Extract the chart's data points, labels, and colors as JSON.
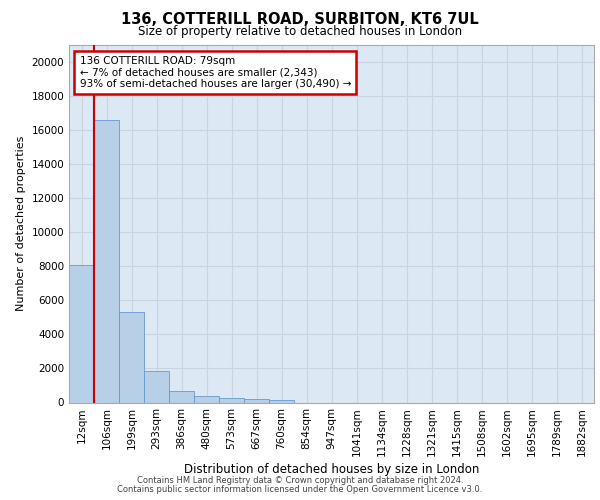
{
  "title1": "136, COTTERILL ROAD, SURBITON, KT6 7UL",
  "title2": "Size of property relative to detached houses in London",
  "xlabel": "Distribution of detached houses by size in London",
  "ylabel": "Number of detached properties",
  "bar_labels": [
    "12sqm",
    "106sqm",
    "199sqm",
    "293sqm",
    "386sqm",
    "480sqm",
    "573sqm",
    "667sqm",
    "760sqm",
    "854sqm",
    "947sqm",
    "1041sqm",
    "1134sqm",
    "1228sqm",
    "1321sqm",
    "1415sqm",
    "1508sqm",
    "1602sqm",
    "1695sqm",
    "1789sqm",
    "1882sqm"
  ],
  "bar_values": [
    8100,
    16600,
    5300,
    1850,
    700,
    370,
    280,
    200,
    160,
    0,
    0,
    0,
    0,
    0,
    0,
    0,
    0,
    0,
    0,
    0,
    0
  ],
  "bar_color": "#b8cfe8",
  "bar_edge_color": "#6699cc",
  "annotation_title": "136 COTTERILL ROAD: 79sqm",
  "annotation_line1": "← 7% of detached houses are smaller (2,343)",
  "annotation_line2": "93% of semi-detached houses are larger (30,490) →",
  "annotation_box_color": "#ffffff",
  "annotation_box_edge": "#cc0000",
  "property_line_color": "#cc0000",
  "ylim": [
    0,
    21000
  ],
  "yticks": [
    0,
    2000,
    4000,
    6000,
    8000,
    10000,
    12000,
    14000,
    16000,
    18000,
    20000
  ],
  "grid_color": "#c8d4e4",
  "bg_color": "#dce8f4",
  "footer1": "Contains HM Land Registry data © Crown copyright and database right 2024.",
  "footer2": "Contains public sector information licensed under the Open Government Licence v3.0."
}
